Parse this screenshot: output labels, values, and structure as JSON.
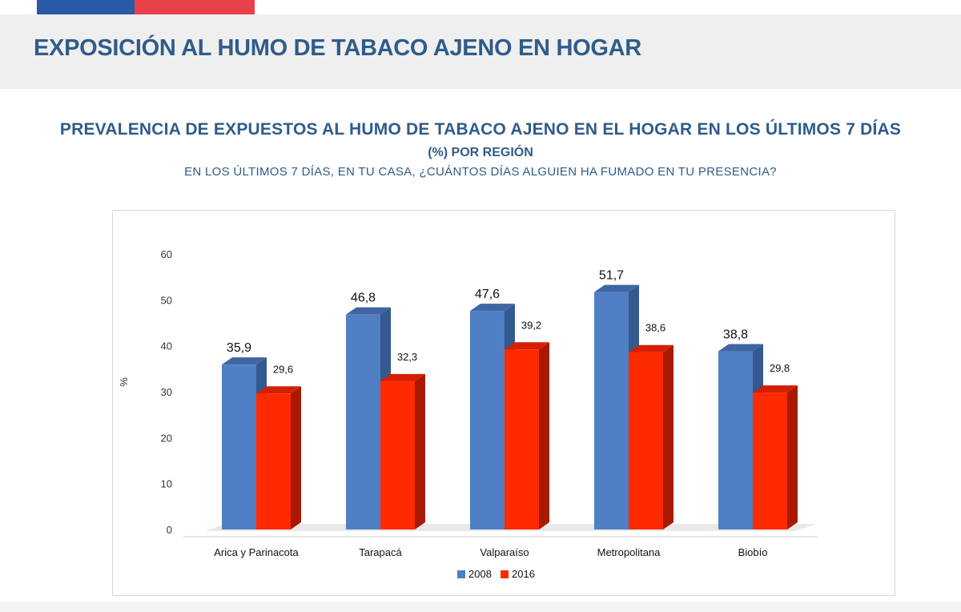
{
  "header": {
    "title": "EXPOSICIÓN AL HUMO DE TABACO AJENO EN HOGAR"
  },
  "subtitle": {
    "line1": "PREVALENCIA DE EXPUESTOS AL HUMO DE TABACO AJENO EN EL HOGAR EN LOS ÚLTIMOS 7 DÍAS",
    "line2": "(%) POR REGIÓN",
    "line3": "EN LOS ÚLTIMOS 7 DÍAS, EN TU CASA, ¿CUÁNTOS DÍAS ALGUIEN HA FUMADO EN TU PRESENCIA?"
  },
  "colors": {
    "brand_blue": "#2a5aa5",
    "brand_red": "#e8414a",
    "title_text": "#2f5c8a",
    "series_2008": "#4f7fc4",
    "series_2016": "#ff2a00"
  },
  "chart_data": {
    "type": "bar",
    "title": "",
    "xlabel": "",
    "ylabel": "%",
    "ylim": [
      0,
      60
    ],
    "yticks": [
      0,
      10,
      20,
      30,
      40,
      50,
      60
    ],
    "categories": [
      "Arica y Parinacota",
      "Tarapacá",
      "Valparaíso",
      "Metropolitana",
      "Biobío"
    ],
    "series": [
      {
        "name": "2008",
        "values": [
          35.9,
          46.8,
          47.6,
          51.7,
          38.8
        ],
        "labels": [
          "35,9",
          "46,8",
          "47,6",
          "51,7",
          "38,8"
        ]
      },
      {
        "name": "2016",
        "values": [
          29.6,
          32.3,
          39.2,
          38.6,
          29.8
        ],
        "labels": [
          "29,6",
          "32,3",
          "39,2",
          "38,6",
          "29,8"
        ]
      }
    ],
    "legend": "bottom-center",
    "grid": false,
    "style": "3d-clustered-column"
  }
}
